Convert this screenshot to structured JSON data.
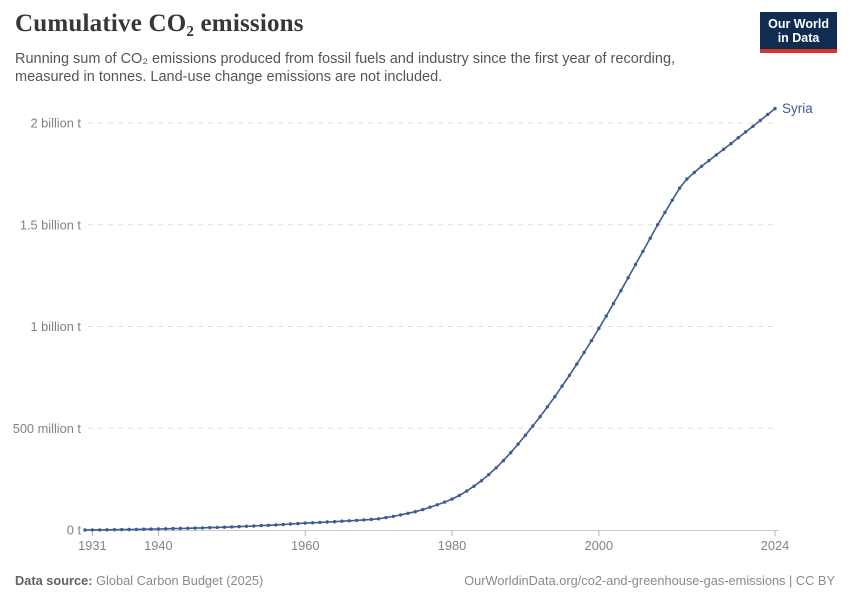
{
  "header": {
    "title": "Cumulative CO₂ emissions",
    "subtitle_line1": "Running sum of CO₂ emissions produced from fossil fuels and industry since the first year of recording,",
    "subtitle_line2": "measured in tonnes. Land-use change emissions are not included.",
    "logo": {
      "line1": "Our World",
      "line2": "in Data",
      "bg_color": "#102d51",
      "accent_color": "#d0362a"
    }
  },
  "chart_data": {
    "type": "line",
    "title": "Cumulative CO₂ emissions",
    "unit": "tonnes",
    "values_unit": "million tonnes",
    "x_range": [
      1930,
      2024
    ],
    "x_ticks": [
      1931,
      1940,
      1960,
      1980,
      2000,
      2024
    ],
    "y_ticks": [
      {
        "value": 0,
        "label": "0 t"
      },
      {
        "value": 500,
        "label": "500 million t"
      },
      {
        "value": 1000,
        "label": "1 billion t"
      },
      {
        "value": 1500,
        "label": "1.5 billion t"
      },
      {
        "value": 2000,
        "label": "2 billion t"
      }
    ],
    "ylim": [
      0,
      2000
    ],
    "grid": "horizontal-dashed",
    "legend_position": "end-of-line",
    "series": [
      {
        "name": "Syria",
        "color": "#3d5c92",
        "values": [
          0.1,
          0.3,
          0.7,
          1.1,
          1.5,
          2.0,
          2.5,
          3.1,
          3.7,
          4.4,
          5.1,
          5.9,
          6.7,
          7.6,
          8.5,
          9.5,
          10.5,
          11.6,
          12.8,
          14.0,
          15.3,
          16.7,
          18.2,
          19.8,
          21.5,
          23.3,
          25.2,
          27.2,
          29.3,
          31.6,
          34.0,
          35.6,
          37.3,
          39.1,
          41.0,
          43.0,
          45.1,
          47.3,
          49.6,
          52.2,
          55.0,
          61,
          67,
          74,
          82,
          90,
          100,
          112,
          124,
          137,
          152,
          170,
          191,
          215,
          242,
          272,
          305,
          341,
          380,
          422,
          466,
          511,
          557,
          605,
          655,
          707,
          760,
          815,
          872,
          930,
          990,
          1051,
          1113,
          1176,
          1240,
          1304,
          1369,
          1434,
          1500,
          1560,
          1620,
          1680,
          1725,
          1757,
          1787,
          1815,
          1843,
          1871,
          1899,
          1928,
          1956,
          1984,
          2013,
          2042,
          2071
        ]
      }
    ]
  },
  "footer": {
    "source_label": "Data source:",
    "source_value": "Global Carbon Budget (2025)",
    "link": "OurWorldinData.org/co2-and-greenhouse-gas-emissions | CC BY"
  }
}
